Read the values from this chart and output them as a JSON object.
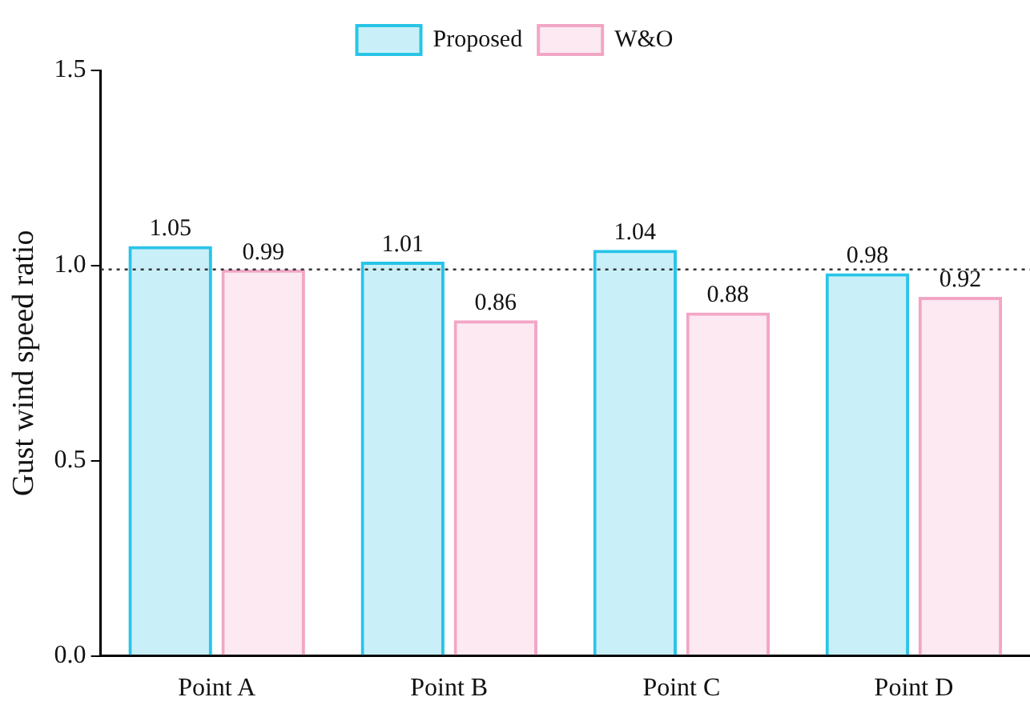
{
  "chart_data": {
    "type": "bar",
    "ylabel": "Gust wind speed ratio",
    "categories": [
      "Point A",
      "Point B",
      "Point C",
      "Point D"
    ],
    "series": [
      {
        "name": "Proposed",
        "color": "#29c4e8",
        "values": [
          1.05,
          1.01,
          1.04,
          0.98
        ]
      },
      {
        "name": "W&O",
        "color": "#f2a6c6",
        "values": [
          0.99,
          0.86,
          0.88,
          0.92
        ]
      }
    ],
    "ylim": [
      0,
      1.5
    ],
    "yticks": [
      {
        "value": 0,
        "label": "0.0"
      },
      {
        "value": 0.5,
        "label": "0.5"
      },
      {
        "value": 1,
        "label": "1.0"
      },
      {
        "value": 1.5,
        "label": "1.5"
      }
    ],
    "ref_lines": [
      {
        "axis": "y",
        "value": 0.99,
        "line_style": "dotted",
        "color": "#333333"
      }
    ],
    "data_labels": true,
    "grid": false,
    "legend": "top"
  }
}
